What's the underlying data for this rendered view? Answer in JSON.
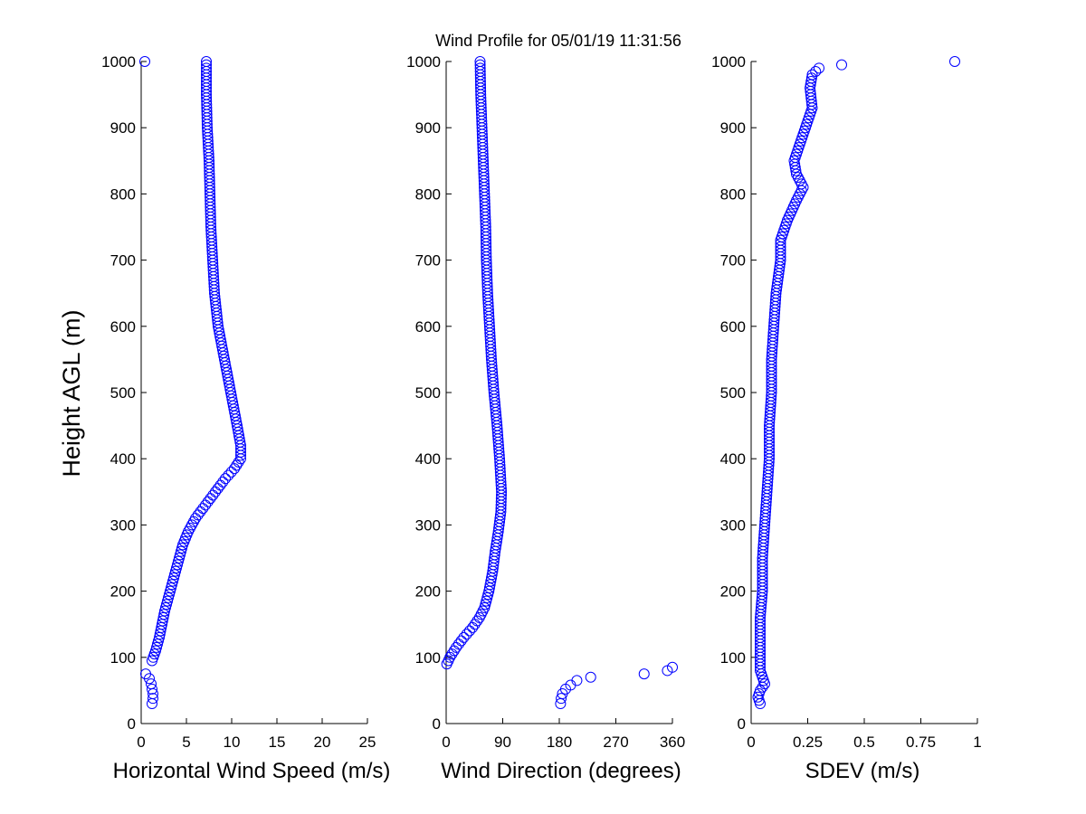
{
  "figure": {
    "title": "Wind Profile for  05/01/19 11:31:56",
    "marker_color": "#0000ff"
  },
  "chart_data": [
    {
      "type": "scatter",
      "xlabel": "Horizontal Wind Speed (m/s)",
      "ylabel": "Height AGL (m)",
      "xlim": [
        0,
        25
      ],
      "ylim": [
        0,
        1000
      ],
      "xticks": [
        "0",
        "5",
        "10",
        "15",
        "20",
        "25"
      ],
      "xtick_values": [
        0,
        5,
        10,
        15,
        20,
        25
      ],
      "yticks": [
        "0",
        "100",
        "200",
        "300",
        "400",
        "500",
        "600",
        "700",
        "800",
        "900",
        "1000"
      ],
      "ytick_values": [
        0,
        100,
        200,
        300,
        400,
        500,
        600,
        700,
        800,
        900,
        1000
      ],
      "profile": [
        [
          1000,
          7.2
        ],
        [
          950,
          7.2
        ],
        [
          900,
          7.3
        ],
        [
          850,
          7.5
        ],
        [
          800,
          7.6
        ],
        [
          750,
          7.7
        ],
        [
          700,
          7.9
        ],
        [
          650,
          8.1
        ],
        [
          600,
          8.5
        ],
        [
          550,
          9.2
        ],
        [
          500,
          9.9
        ],
        [
          450,
          10.6
        ],
        [
          420,
          11.0
        ],
        [
          400,
          11.0
        ],
        [
          385,
          10.3
        ],
        [
          370,
          9.3
        ],
        [
          350,
          8.2
        ],
        [
          330,
          7.1
        ],
        [
          310,
          6.0
        ],
        [
          290,
          5.2
        ],
        [
          270,
          4.6
        ],
        [
          250,
          4.2
        ],
        [
          230,
          3.8
        ],
        [
          210,
          3.4
        ],
        [
          190,
          3.0
        ],
        [
          170,
          2.6
        ],
        [
          150,
          2.3
        ],
        [
          130,
          2.0
        ],
        [
          110,
          1.6
        ],
        [
          95,
          1.2
        ]
      ],
      "extra_points": [
        {
          "x": 0.4,
          "y": 1000
        },
        {
          "x": 0.5,
          "y": 75
        },
        {
          "x": 0.9,
          "y": 68
        },
        {
          "x": 1.1,
          "y": 60
        },
        {
          "x": 1.2,
          "y": 52
        },
        {
          "x": 1.3,
          "y": 45
        },
        {
          "x": 1.3,
          "y": 38
        },
        {
          "x": 1.2,
          "y": 30
        }
      ]
    },
    {
      "type": "scatter",
      "xlabel": "Wind Direction (degrees)",
      "xlim": [
        0,
        360
      ],
      "ylim": [
        0,
        1000
      ],
      "xticks": [
        "0",
        "90",
        "180",
        "270",
        "360"
      ],
      "xtick_values": [
        0,
        90,
        180,
        270,
        360
      ],
      "yticks": [
        "0",
        "100",
        "200",
        "300",
        "400",
        "500",
        "600",
        "700",
        "800",
        "900",
        "1000"
      ],
      "ytick_values": [
        0,
        100,
        200,
        300,
        400,
        500,
        600,
        700,
        800,
        900,
        1000
      ],
      "profile": [
        [
          1000,
          54
        ],
        [
          950,
          55
        ],
        [
          900,
          57
        ],
        [
          850,
          59
        ],
        [
          800,
          61
        ],
        [
          750,
          63
        ],
        [
          700,
          64
        ],
        [
          650,
          66
        ],
        [
          600,
          69
        ],
        [
          550,
          72
        ],
        [
          500,
          76
        ],
        [
          450,
          81
        ],
        [
          400,
          85
        ],
        [
          350,
          88
        ],
        [
          320,
          87
        ],
        [
          290,
          83
        ],
        [
          260,
          78
        ],
        [
          230,
          74
        ],
        [
          200,
          68
        ],
        [
          175,
          61
        ],
        [
          160,
          53
        ],
        [
          145,
          42
        ],
        [
          130,
          28
        ],
        [
          115,
          16
        ],
        [
          100,
          6
        ],
        [
          90,
          1
        ]
      ],
      "extra_points": [
        {
          "x": 182,
          "y": 30
        },
        {
          "x": 183,
          "y": 38
        },
        {
          "x": 185,
          "y": 45
        },
        {
          "x": 190,
          "y": 52
        },
        {
          "x": 198,
          "y": 58
        },
        {
          "x": 208,
          "y": 65
        },
        {
          "x": 230,
          "y": 70
        },
        {
          "x": 315,
          "y": 75
        },
        {
          "x": 352,
          "y": 80
        },
        {
          "x": 360,
          "y": 85
        }
      ]
    },
    {
      "type": "scatter",
      "xlabel": "SDEV  (m/s)",
      "xlim": [
        0,
        1
      ],
      "ylim": [
        0,
        1000
      ],
      "xticks": [
        "0",
        "0.25",
        "0.5",
        "0.75",
        "1"
      ],
      "xtick_values": [
        0,
        0.25,
        0.5,
        0.75,
        1
      ],
      "yticks": [
        "0",
        "100",
        "200",
        "300",
        "400",
        "500",
        "600",
        "700",
        "800",
        "900",
        "1000"
      ],
      "ytick_values": [
        0,
        100,
        200,
        300,
        400,
        500,
        600,
        700,
        800,
        900,
        1000
      ],
      "profile": [
        [
          30,
          0.04
        ],
        [
          40,
          0.03
        ],
        [
          50,
          0.04
        ],
        [
          60,
          0.06
        ],
        [
          80,
          0.04
        ],
        [
          120,
          0.04
        ],
        [
          160,
          0.04
        ],
        [
          200,
          0.05
        ],
        [
          250,
          0.05
        ],
        [
          300,
          0.06
        ],
        [
          350,
          0.07
        ],
        [
          400,
          0.08
        ],
        [
          450,
          0.08
        ],
        [
          500,
          0.09
        ],
        [
          550,
          0.09
        ],
        [
          600,
          0.1
        ],
        [
          650,
          0.11
        ],
        [
          700,
          0.13
        ],
        [
          730,
          0.13
        ],
        [
          760,
          0.16
        ],
        [
          790,
          0.2
        ],
        [
          810,
          0.23
        ],
        [
          830,
          0.2
        ],
        [
          850,
          0.19
        ],
        [
          870,
          0.21
        ],
        [
          900,
          0.24
        ],
        [
          930,
          0.27
        ],
        [
          960,
          0.26
        ],
        [
          980,
          0.27
        ],
        [
          990,
          0.3
        ]
      ],
      "extra_points": [
        {
          "x": 0.4,
          "y": 995
        },
        {
          "x": 0.9,
          "y": 1000
        }
      ]
    }
  ]
}
